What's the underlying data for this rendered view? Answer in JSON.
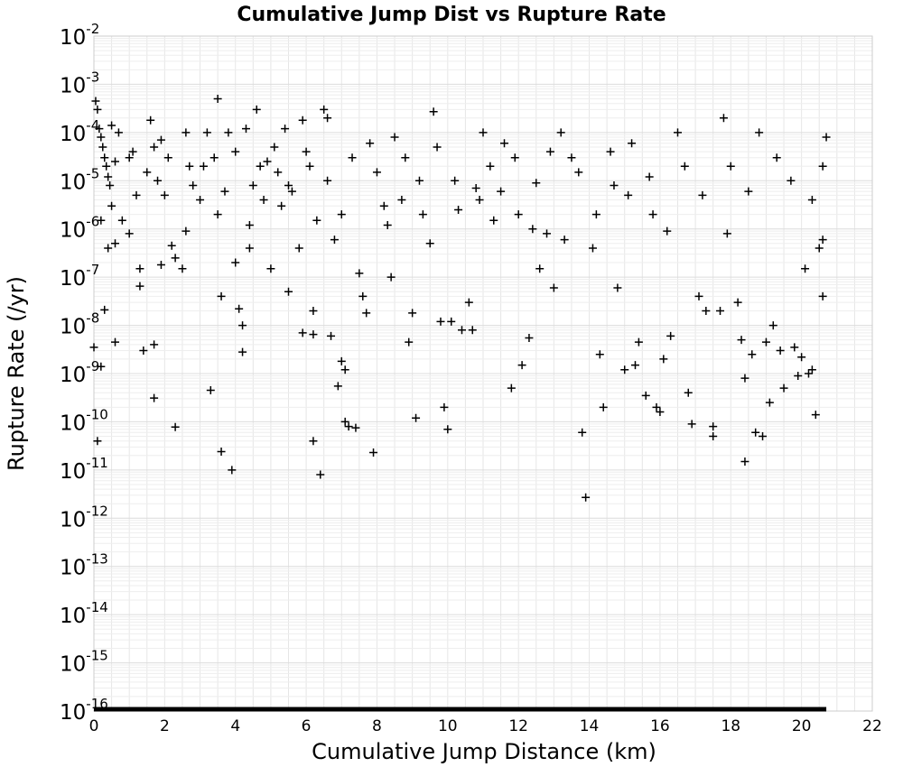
{
  "chart_data": {
    "type": "scatter",
    "title": "Cumulative Jump Dist vs Rupture Rate",
    "xlabel": "Cumulative Jump Distance (km)",
    "ylabel": "Rupture Rate (/yr)",
    "xlim": [
      0,
      22
    ],
    "ylim": [
      1e-16,
      0.01
    ],
    "y_scale": "log",
    "grid": true,
    "marker": "+",
    "marker_color": "#000000",
    "x_ticks": [
      "0",
      "2",
      "4",
      "6",
      "8",
      "10",
      "12",
      "14",
      "16",
      "18",
      "20",
      "22"
    ],
    "y_ticks": [
      {
        "base": "10",
        "exp": "-2"
      },
      {
        "base": "10",
        "exp": "-3"
      },
      {
        "base": "10",
        "exp": "-4"
      },
      {
        "base": "10",
        "exp": "-5"
      },
      {
        "base": "10",
        "exp": "-6"
      },
      {
        "base": "10",
        "exp": "-7"
      },
      {
        "base": "10",
        "exp": "-8"
      },
      {
        "base": "10",
        "exp": "-9"
      },
      {
        "base": "10",
        "exp": "-10"
      },
      {
        "base": "10",
        "exp": "-11"
      },
      {
        "base": "10",
        "exp": "-12"
      },
      {
        "base": "10",
        "exp": "-13"
      },
      {
        "base": "10",
        "exp": "-14"
      },
      {
        "base": "10",
        "exp": "-15"
      },
      {
        "base": "10",
        "exp": "-16"
      }
    ],
    "series": [
      {
        "points": [
          [
            0.05,
            0.00045
          ],
          [
            0.1,
            0.0003
          ],
          [
            0.15,
            0.00012
          ],
          [
            0.2,
            8e-05
          ],
          [
            0.25,
            5e-05
          ],
          [
            0.3,
            3e-05
          ],
          [
            0.35,
            2e-05
          ],
          [
            0.4,
            1.2e-05
          ],
          [
            0.45,
            8e-06
          ],
          [
            0.5,
            3e-06
          ],
          [
            0.2,
            1.5e-06
          ],
          [
            0.3,
            2.1e-08
          ],
          [
            0.2,
            1.4e-09
          ],
          [
            0.1,
            4e-11
          ],
          [
            0.0,
            3.5e-09
          ],
          [
            0.6,
            4.5e-09
          ],
          [
            0.6,
            5e-07
          ],
          [
            0.4,
            4e-07
          ],
          [
            0.7,
            0.0001
          ],
          [
            0.5,
            0.00014
          ],
          [
            0.8,
            1.5e-06
          ],
          [
            1.0,
            3e-05
          ],
          [
            1.1,
            4e-05
          ],
          [
            1.2,
            5e-06
          ],
          [
            1.3,
            1.5e-07
          ],
          [
            1.3,
            6.5e-08
          ],
          [
            1.4,
            3e-09
          ],
          [
            1.6,
            0.00018
          ],
          [
            1.7,
            5e-05
          ],
          [
            1.7,
            4e-09
          ],
          [
            1.7,
            3.1e-10
          ],
          [
            1.8,
            1e-05
          ],
          [
            1.9,
            7e-05
          ],
          [
            1.9,
            1.8e-07
          ],
          [
            2.1,
            3e-05
          ],
          [
            2.2,
            4.5e-07
          ],
          [
            2.3,
            7.8e-11
          ],
          [
            2.3,
            2.5e-07
          ],
          [
            2.5,
            1.5e-07
          ],
          [
            2.6,
            0.0001
          ],
          [
            2.7,
            2e-05
          ],
          [
            2.8,
            8e-06
          ],
          [
            3.0,
            4e-06
          ],
          [
            3.2,
            0.0001
          ],
          [
            3.3,
            4.5e-10
          ],
          [
            3.4,
            3e-05
          ],
          [
            3.5,
            2e-06
          ],
          [
            3.5,
            0.0005
          ],
          [
            3.6,
            4e-08
          ],
          [
            3.6,
            2.4e-11
          ],
          [
            3.8,
            0.0001
          ],
          [
            3.9,
            1e-11
          ],
          [
            4.0,
            4e-05
          ],
          [
            4.0,
            2e-07
          ],
          [
            4.1,
            2.2e-08
          ],
          [
            4.2,
            2.8e-09
          ],
          [
            4.2,
            1e-08
          ],
          [
            4.3,
            0.00012
          ],
          [
            4.4,
            4e-07
          ],
          [
            4.5,
            8e-06
          ],
          [
            4.6,
            0.0003
          ],
          [
            4.7,
            2e-05
          ],
          [
            4.8,
            4e-06
          ],
          [
            5.0,
            1.5e-07
          ],
          [
            5.1,
            5e-05
          ],
          [
            5.2,
            1.5e-05
          ],
          [
            5.3,
            3e-06
          ],
          [
            5.4,
            0.00012
          ],
          [
            5.5,
            5e-08
          ],
          [
            5.6,
            6e-06
          ],
          [
            5.8,
            4e-07
          ],
          [
            5.9,
            0.00018
          ],
          [
            5.9,
            7e-09
          ],
          [
            6.1,
            2e-05
          ],
          [
            6.2,
            2e-08
          ],
          [
            6.2,
            6.5e-09
          ],
          [
            6.2,
            4e-11
          ],
          [
            6.3,
            1.5e-06
          ],
          [
            6.4,
            8e-12
          ],
          [
            6.5,
            0.0003
          ],
          [
            6.6,
            0.0002
          ],
          [
            6.7,
            6e-09
          ],
          [
            6.8,
            6e-07
          ],
          [
            6.9,
            5.5e-10
          ],
          [
            7.0,
            1.8e-09
          ],
          [
            7.1,
            1.2e-09
          ],
          [
            7.1,
            1e-10
          ],
          [
            7.2,
            8e-11
          ],
          [
            7.3,
            3e-05
          ],
          [
            7.4,
            7.5e-11
          ],
          [
            7.5,
            1.2e-07
          ],
          [
            7.6,
            4e-08
          ],
          [
            7.7,
            1.8e-08
          ],
          [
            7.9,
            2.3e-11
          ],
          [
            8.0,
            1.5e-05
          ],
          [
            8.2,
            3e-06
          ],
          [
            8.4,
            1e-07
          ],
          [
            8.5,
            8e-05
          ],
          [
            8.7,
            4e-06
          ],
          [
            8.9,
            4.5e-09
          ],
          [
            9.0,
            1.8e-08
          ],
          [
            9.1,
            1.2e-10
          ],
          [
            9.2,
            1e-05
          ],
          [
            9.5,
            5e-07
          ],
          [
            9.6,
            0.00027
          ],
          [
            9.8,
            1.2e-08
          ],
          [
            9.9,
            2e-10
          ],
          [
            10.0,
            7e-11
          ],
          [
            10.1,
            1.2e-08
          ],
          [
            10.2,
            1e-05
          ],
          [
            10.4,
            8e-09
          ],
          [
            10.6,
            3e-08
          ],
          [
            10.7,
            8e-09
          ],
          [
            10.9,
            4e-06
          ],
          [
            11.0,
            0.0001
          ],
          [
            11.2,
            2e-05
          ],
          [
            11.5,
            6e-06
          ],
          [
            11.8,
            5e-10
          ],
          [
            11.9,
            3e-05
          ],
          [
            12.1,
            1.5e-09
          ],
          [
            12.3,
            5.5e-09
          ],
          [
            12.4,
            1e-06
          ],
          [
            12.6,
            1.5e-07
          ],
          [
            12.8,
            8e-07
          ],
          [
            13.0,
            6e-08
          ],
          [
            13.2,
            0.0001
          ],
          [
            13.5,
            3e-05
          ],
          [
            13.8,
            6e-11
          ],
          [
            13.9,
            2.7e-12
          ],
          [
            14.1,
            4e-07
          ],
          [
            14.3,
            2.5e-09
          ],
          [
            14.4,
            2e-10
          ],
          [
            14.6,
            4e-05
          ],
          [
            14.8,
            6e-08
          ],
          [
            15.0,
            1.2e-09
          ],
          [
            15.1,
            5e-06
          ],
          [
            15.3,
            1.5e-09
          ],
          [
            15.4,
            4.5e-09
          ],
          [
            15.6,
            3.5e-10
          ],
          [
            15.8,
            2e-06
          ],
          [
            15.9,
            2e-10
          ],
          [
            16.0,
            1.6e-10
          ],
          [
            16.1,
            2e-09
          ],
          [
            16.3,
            6e-09
          ],
          [
            16.5,
            0.0001
          ],
          [
            16.8,
            4e-10
          ],
          [
            16.9,
            9e-11
          ],
          [
            17.1,
            4e-08
          ],
          [
            17.3,
            2e-08
          ],
          [
            17.5,
            8e-11
          ],
          [
            17.5,
            5e-11
          ],
          [
            17.7,
            2e-08
          ],
          [
            17.8,
            0.0002
          ],
          [
            18.0,
            2e-05
          ],
          [
            18.2,
            3e-08
          ],
          [
            18.3,
            5e-09
          ],
          [
            18.4,
            1.5e-11
          ],
          [
            18.4,
            8e-10
          ],
          [
            18.6,
            2.5e-09
          ],
          [
            18.7,
            6e-11
          ],
          [
            18.9,
            5e-11
          ],
          [
            19.0,
            4.5e-09
          ],
          [
            19.1,
            2.5e-10
          ],
          [
            19.2,
            1e-08
          ],
          [
            19.4,
            3e-09
          ],
          [
            19.5,
            5e-10
          ],
          [
            19.8,
            3.5e-09
          ],
          [
            19.9,
            9e-10
          ],
          [
            20.0,
            2.2e-09
          ],
          [
            20.1,
            1.5e-07
          ],
          [
            20.2,
            1e-09
          ],
          [
            20.3,
            1.2e-09
          ],
          [
            20.4,
            1.4e-10
          ],
          [
            20.5,
            4e-07
          ],
          [
            20.6,
            4e-08
          ],
          [
            20.7,
            8e-05
          ],
          [
            20.6,
            2e-05
          ],
          [
            20.6,
            6e-07
          ],
          [
            20.3,
            4e-06
          ],
          [
            19.7,
            1e-05
          ],
          [
            19.3,
            3e-05
          ],
          [
            18.8,
            0.0001
          ],
          [
            18.5,
            6e-06
          ],
          [
            17.9,
            8e-07
          ],
          [
            17.2,
            5e-06
          ],
          [
            16.7,
            2e-05
          ],
          [
            16.2,
            9e-07
          ],
          [
            15.7,
            1.2e-05
          ],
          [
            15.2,
            6e-05
          ],
          [
            14.7,
            8e-06
          ],
          [
            14.2,
            2e-06
          ],
          [
            13.7,
            1.5e-05
          ],
          [
            13.3,
            6e-07
          ],
          [
            12.9,
            4e-05
          ],
          [
            12.5,
            9e-06
          ],
          [
            12.0,
            2e-06
          ],
          [
            11.6,
            6e-05
          ],
          [
            11.3,
            1.5e-06
          ],
          [
            10.8,
            7e-06
          ],
          [
            10.3,
            2.5e-06
          ],
          [
            9.7,
            5e-05
          ],
          [
            9.3,
            2e-06
          ],
          [
            8.8,
            3e-05
          ],
          [
            8.3,
            1.2e-06
          ],
          [
            7.8,
            6e-05
          ],
          [
            7.0,
            2e-06
          ],
          [
            6.6,
            1e-05
          ],
          [
            6.0,
            4e-05
          ],
          [
            5.5,
            8e-06
          ],
          [
            4.9,
            2.5e-05
          ],
          [
            4.4,
            1.2e-06
          ],
          [
            3.7,
            6e-06
          ],
          [
            3.1,
            2e-05
          ],
          [
            2.6,
            9e-07
          ],
          [
            2.0,
            5e-06
          ],
          [
            1.5,
            1.5e-05
          ],
          [
            1.0,
            8e-07
          ],
          [
            0.6,
            2.5e-05
          ]
        ]
      }
    ]
  }
}
